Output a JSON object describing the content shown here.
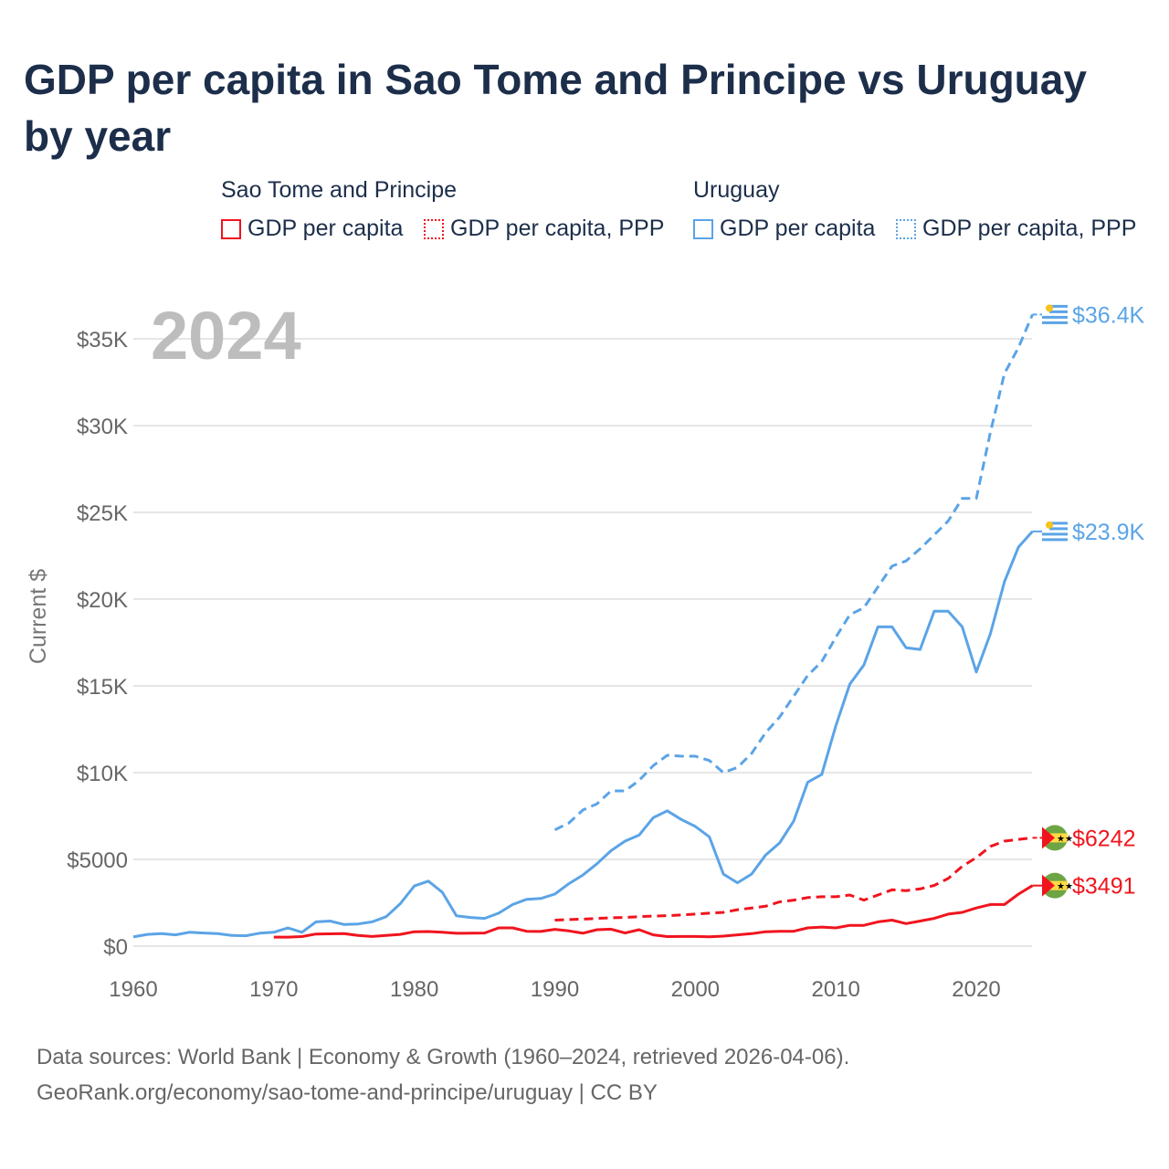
{
  "title": "GDP per capita in Sao Tome and Principe vs Uruguay by year",
  "legend": {
    "groups": [
      {
        "name": "Sao Tome and Principe",
        "items": [
          "GDP per capita",
          "GDP per capita, PPP"
        ]
      },
      {
        "name": "Uruguay",
        "items": [
          "GDP per capita",
          "GDP per capita, PPP"
        ]
      }
    ]
  },
  "footer": {
    "line1": "Data sources: World Bank | Economy & Growth (1960–2024, retrieved 2026-04-06).",
    "line2": "GeoRank.org/economy/sao-tome-and-principe/uruguay | CC BY"
  },
  "chart_data": {
    "type": "line",
    "title": "GDP per capita in Sao Tome and Principe vs Uruguay by year",
    "year_label": "2024",
    "xlabel": "",
    "ylabel": "Current $",
    "xlim": [
      1960,
      2024
    ],
    "ylim": [
      0,
      37000
    ],
    "xticks": [
      1960,
      1970,
      1980,
      1990,
      2000,
      2010,
      2020
    ],
    "yticks": [
      {
        "v": 0,
        "label": "$0"
      },
      {
        "v": 5000,
        "label": "$5000"
      },
      {
        "v": 10000,
        "label": "$10K"
      },
      {
        "v": 15000,
        "label": "$15K"
      },
      {
        "v": 20000,
        "label": "$20K"
      },
      {
        "v": 25000,
        "label": "$25K"
      },
      {
        "v": 30000,
        "label": "$30K"
      },
      {
        "v": 35000,
        "label": "$35K"
      }
    ],
    "grid": true,
    "legend_position": "top",
    "series": [
      {
        "name": "Uruguay GDP per capita, PPP",
        "color": "#5ba4e6",
        "dash": true,
        "start": 1990,
        "end_label": "$36.4K",
        "flag": "uruguay",
        "values": [
          6700,
          7100,
          7850,
          8200,
          8950,
          8950,
          9550,
          10400,
          11000,
          10950,
          10950,
          10700,
          10000,
          10300,
          11100,
          12300,
          13200,
          14400,
          15600,
          16400,
          17800,
          19100,
          19500,
          20700,
          21900,
          22200,
          22900,
          23700,
          24500,
          25800,
          25800,
          29600,
          33000,
          34500,
          36400
        ]
      },
      {
        "name": "Uruguay GDP per capita",
        "color": "#5ba4e6",
        "dash": false,
        "start": 1960,
        "end_label": "$23.9K",
        "flag": "uruguay",
        "values": [
          530,
          680,
          720,
          650,
          800,
          760,
          720,
          620,
          600,
          750,
          800,
          1050,
          800,
          1400,
          1450,
          1250,
          1280,
          1400,
          1700,
          2450,
          3470,
          3750,
          3100,
          1750,
          1650,
          1600,
          1900,
          2400,
          2700,
          2750,
          3000,
          3600,
          4100,
          4750,
          5500,
          6050,
          6400,
          7400,
          7800,
          7300,
          6900,
          6300,
          4150,
          3650,
          4150,
          5250,
          5950,
          7200,
          9450,
          9900,
          12700,
          15100,
          16200,
          18400,
          18400,
          17200,
          17100,
          19300,
          19300,
          18400,
          15800,
          18000,
          21000,
          23000,
          23900
        ]
      },
      {
        "name": "Sao Tome and Principe GDP per capita, PPP",
        "color": "#f0141e",
        "dash": true,
        "start": 1990,
        "end_label": "$6242",
        "flag": "stp",
        "values": [
          1500,
          1530,
          1560,
          1600,
          1630,
          1660,
          1700,
          1730,
          1760,
          1800,
          1850,
          1900,
          1950,
          2100,
          2200,
          2300,
          2550,
          2650,
          2800,
          2850,
          2850,
          2950,
          2650,
          2950,
          3250,
          3200,
          3300,
          3500,
          3900,
          4600,
          5100,
          5750,
          6050,
          6150,
          6242
        ]
      },
      {
        "name": "Sao Tome and Principe GDP per capita",
        "color": "#f0141e",
        "dash": false,
        "start": 1970,
        "end_label": "$3491",
        "flag": "stp",
        "values": [
          520,
          520,
          550,
          700,
          710,
          720,
          620,
          560,
          620,
          680,
          830,
          840,
          800,
          740,
          750,
          760,
          1050,
          1050,
          860,
          850,
          970,
          880,
          750,
          950,
          980,
          760,
          950,
          650,
          550,
          560,
          560,
          540,
          580,
          650,
          720,
          830,
          860,
          860,
          1050,
          1100,
          1050,
          1200,
          1200,
          1400,
          1500,
          1300,
          1450,
          1600,
          1850,
          1950,
          2200,
          2400,
          2400,
          3000,
          3491
        ]
      }
    ]
  }
}
